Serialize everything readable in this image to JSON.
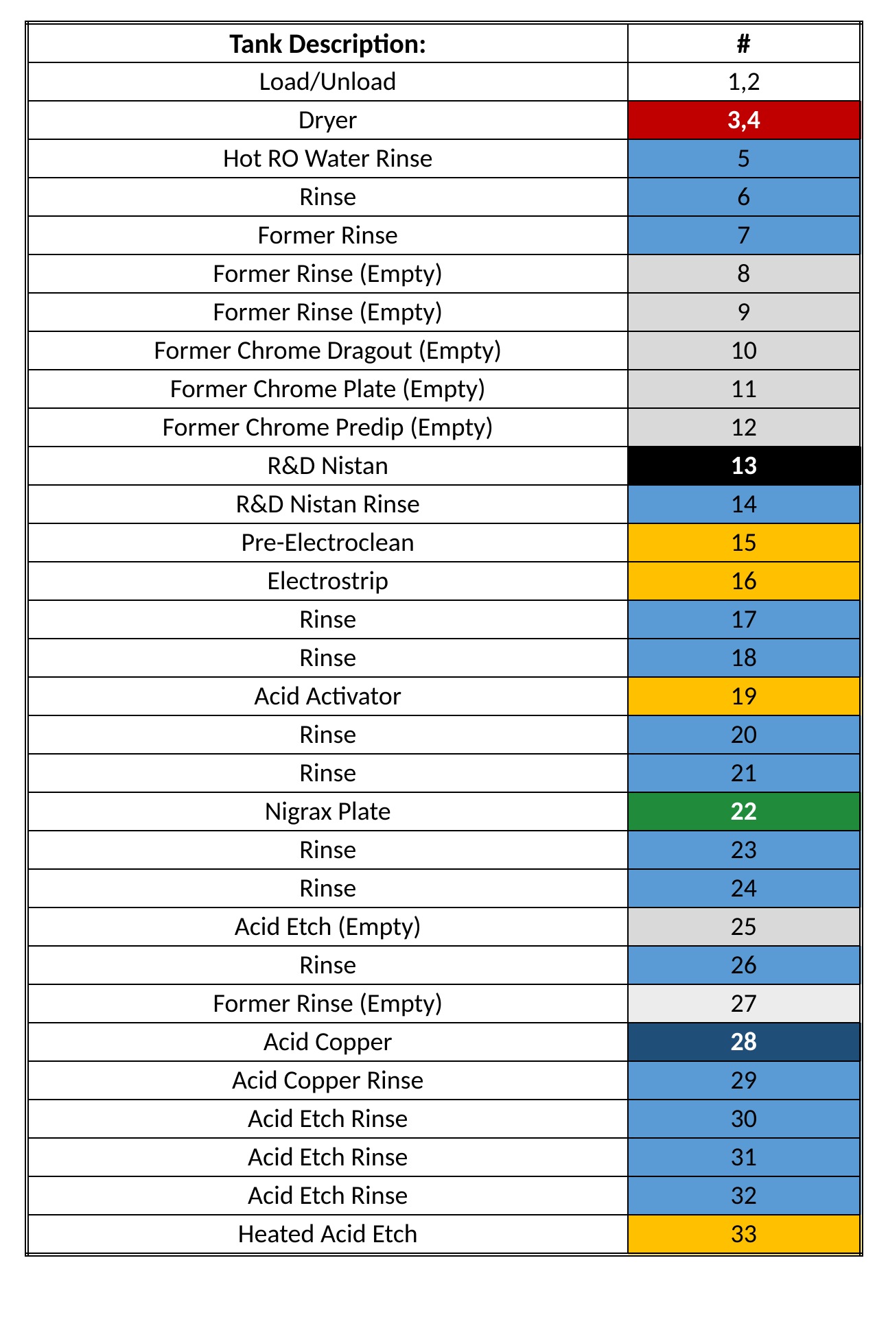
{
  "table": {
    "header": {
      "description": "Tank Description:",
      "number": "#"
    },
    "header_fontsize": 40,
    "cell_fontsize": 38,
    "font_family": "Calibri",
    "border_color": "#000000",
    "outer_border": "double",
    "col_widths": {
      "description_pct": 72,
      "number_pct": 28
    },
    "palette": {
      "white": {
        "bg": "#ffffff",
        "fg": "#000000",
        "bold": false
      },
      "red": {
        "bg": "#c00000",
        "fg": "#ffffff",
        "bold": true
      },
      "blue": {
        "bg": "#5b9bd5",
        "fg": "#000000",
        "bold": false
      },
      "grey": {
        "bg": "#d9d9d9",
        "fg": "#000000",
        "bold": false
      },
      "ltgrey": {
        "bg": "#ececec",
        "fg": "#000000",
        "bold": false
      },
      "black": {
        "bg": "#000000",
        "fg": "#ffffff",
        "bold": true
      },
      "orange": {
        "bg": "#ffc000",
        "fg": "#000000",
        "bold": false
      },
      "green": {
        "bg": "#1f8b3b",
        "fg": "#ffffff",
        "bold": true
      },
      "darkblue": {
        "bg": "#1f4e79",
        "fg": "#ffffff",
        "bold": true
      }
    },
    "rows": [
      {
        "description": "Load/Unload",
        "number": "1,2",
        "style": "white"
      },
      {
        "description": "Dryer",
        "number": "3,4",
        "style": "red"
      },
      {
        "description": "Hot RO Water Rinse",
        "number": "5",
        "style": "blue"
      },
      {
        "description": "Rinse",
        "number": "6",
        "style": "blue"
      },
      {
        "description": "Former Rinse",
        "number": "7",
        "style": "blue"
      },
      {
        "description": "Former Rinse (Empty)",
        "number": "8",
        "style": "grey"
      },
      {
        "description": "Former Rinse (Empty)",
        "number": "9",
        "style": "grey"
      },
      {
        "description": "Former Chrome Dragout (Empty)",
        "number": "10",
        "style": "grey"
      },
      {
        "description": "Former Chrome Plate (Empty)",
        "number": "11",
        "style": "grey"
      },
      {
        "description": "Former Chrome Predip (Empty)",
        "number": "12",
        "style": "grey"
      },
      {
        "description": "R&D Nistan",
        "number": "13",
        "style": "black"
      },
      {
        "description": "R&D Nistan Rinse",
        "number": "14",
        "style": "blue"
      },
      {
        "description": "Pre-Electroclean",
        "number": "15",
        "style": "orange"
      },
      {
        "description": "Electrostrip",
        "number": "16",
        "style": "orange"
      },
      {
        "description": "Rinse",
        "number": "17",
        "style": "blue"
      },
      {
        "description": "Rinse",
        "number": "18",
        "style": "blue"
      },
      {
        "description": "Acid Activator",
        "number": "19",
        "style": "orange"
      },
      {
        "description": "Rinse",
        "number": "20",
        "style": "blue"
      },
      {
        "description": "Rinse",
        "number": "21",
        "style": "blue"
      },
      {
        "description": "Nigrax Plate",
        "number": "22",
        "style": "green"
      },
      {
        "description": "Rinse",
        "number": "23",
        "style": "blue"
      },
      {
        "description": "Rinse",
        "number": "24",
        "style": "blue"
      },
      {
        "description": "Acid Etch (Empty)",
        "number": "25",
        "style": "grey"
      },
      {
        "description": "Rinse",
        "number": "26",
        "style": "blue"
      },
      {
        "description": "Former Rinse (Empty)",
        "number": "27",
        "style": "ltgrey"
      },
      {
        "description": "Acid Copper",
        "number": "28",
        "style": "darkblue"
      },
      {
        "description": "Acid Copper Rinse",
        "number": "29",
        "style": "blue"
      },
      {
        "description": "Acid Etch Rinse",
        "number": "30",
        "style": "blue"
      },
      {
        "description": "Acid Etch Rinse",
        "number": "31",
        "style": "blue"
      },
      {
        "description": "Acid Etch Rinse",
        "number": "32",
        "style": "blue"
      },
      {
        "description": "Heated Acid Etch",
        "number": "33",
        "style": "orange"
      }
    ]
  }
}
